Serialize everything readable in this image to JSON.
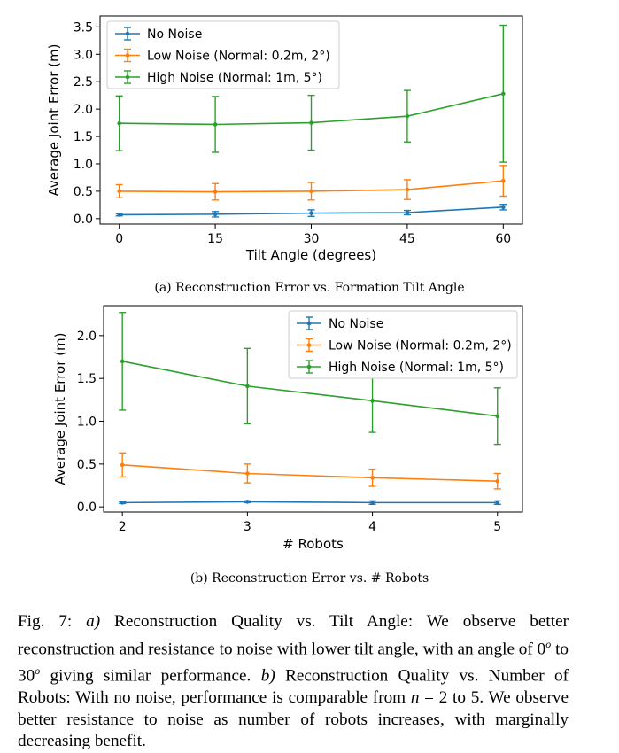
{
  "chart_data": [
    {
      "type": "line",
      "id": "a",
      "title": "",
      "xlabel": "Tilt Angle (degrees)",
      "ylabel": "Average Joint Error (m)",
      "x": [
        0,
        15,
        30,
        45,
        60
      ],
      "x_ticks": [
        "0",
        "15",
        "30",
        "45",
        "60"
      ],
      "y_ticks": [
        "0.0",
        "0.5",
        "1.0",
        "1.5",
        "2.0",
        "2.5",
        "3.0",
        "3.5"
      ],
      "xlim": [
        -3,
        63
      ],
      "ylim": [
        -0.1,
        3.7
      ],
      "legend_position": "top-left",
      "series": [
        {
          "name": "No Noise",
          "color": "#1f77b4",
          "values": [
            0.07,
            0.08,
            0.1,
            0.11,
            0.21
          ],
          "errors": [
            0.02,
            0.05,
            0.06,
            0.04,
            0.05
          ]
        },
        {
          "name": "Low Noise (Normal: 0.2m, 2°)",
          "color": "#ff7f0e",
          "values": [
            0.5,
            0.49,
            0.5,
            0.53,
            0.69
          ],
          "errors": [
            0.12,
            0.15,
            0.16,
            0.18,
            0.28
          ]
        },
        {
          "name": "High Noise (Normal: 1m, 5°)",
          "color": "#2ca02c",
          "values": [
            1.74,
            1.72,
            1.75,
            1.87,
            2.28
          ],
          "errors": [
            0.5,
            0.51,
            0.5,
            0.47,
            1.25
          ]
        }
      ]
    },
    {
      "type": "line",
      "id": "b",
      "title": "",
      "xlabel": "# Robots",
      "ylabel": "Average Joint Error (m)",
      "x": [
        2,
        3,
        4,
        5
      ],
      "x_ticks": [
        "2",
        "3",
        "4",
        "5"
      ],
      "y_ticks": [
        "0.0",
        "0.5",
        "1.0",
        "1.5",
        "2.0"
      ],
      "xlim": [
        1.85,
        5.2
      ],
      "ylim": [
        -0.06,
        2.35
      ],
      "legend_position": "top-right",
      "series": [
        {
          "name": "No Noise",
          "color": "#1f77b4",
          "values": [
            0.05,
            0.06,
            0.05,
            0.05
          ],
          "errors": [
            0.01,
            0.01,
            0.02,
            0.02
          ]
        },
        {
          "name": "Low Noise (Normal: 0.2m, 2°)",
          "color": "#ff7f0e",
          "values": [
            0.49,
            0.39,
            0.34,
            0.3
          ],
          "errors": [
            0.14,
            0.11,
            0.1,
            0.09
          ]
        },
        {
          "name": "High Noise (Normal: 1m, 5°)",
          "color": "#2ca02c",
          "values": [
            1.7,
            1.41,
            1.24,
            1.06
          ],
          "errors": [
            0.57,
            0.44,
            0.37,
            0.33
          ]
        }
      ]
    }
  ],
  "captions": {
    "a": "(a) Reconstruction Error vs. Formation Tilt Angle",
    "b": "(b) Reconstruction Error vs. # Robots"
  },
  "figure_caption": {
    "label": "Fig. 7:",
    "part_a_label": "a)",
    "part_a_text": " Reconstruction Quality vs. Tilt Angle: We observe better reconstruction and resistance to noise with lower tilt angle, with an angle of ",
    "angle_low": "0",
    "angle_mid": " to ",
    "angle_high": "30",
    "degree_mark": "o",
    "part_a_end": " giving similar performance. ",
    "part_b_label": "b)",
    "part_b_text": " Reconstruction Quality vs. Number of Robots: With no noise, performance is comparable from ",
    "n_symbol": "n",
    "n_range": " = 2 to 5",
    "part_b_end": ". We observe better resistance to noise as number of robots increases, with marginally decreasing benefit."
  }
}
